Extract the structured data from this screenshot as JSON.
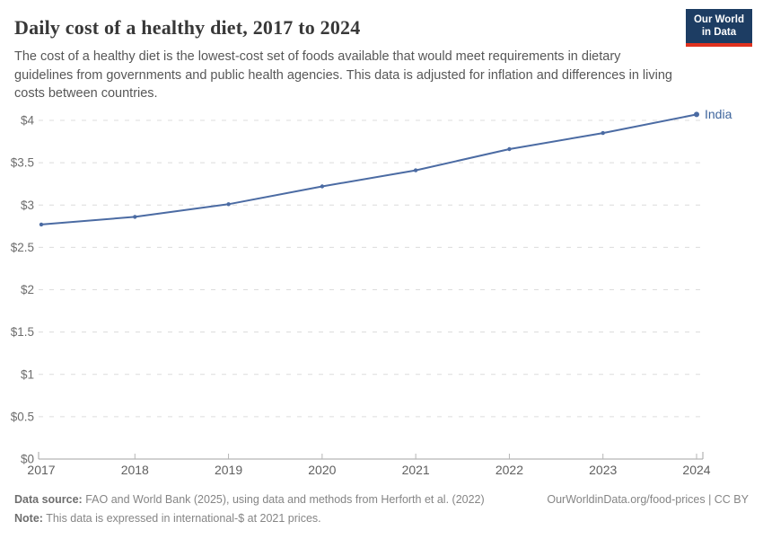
{
  "header": {
    "title": "Daily cost of a healthy diet, 2017 to 2024",
    "subtitle": "The cost of a healthy diet is the lowest-cost set of foods available that would meet requirements in dietary guidelines from governments and public health agencies. This data is adjusted for inflation and differences in living costs between countries."
  },
  "logo": {
    "line1": "Our World",
    "line2": "in Data",
    "bg_color": "#1d3d63",
    "accent_color": "#e0321f"
  },
  "chart_data": {
    "type": "line",
    "title": "Daily cost of a healthy diet, 2017 to 2024",
    "x": [
      2017,
      2018,
      2019,
      2020,
      2021,
      2022,
      2023,
      2024
    ],
    "series": [
      {
        "name": "India",
        "color": "#4b6ba3",
        "label_color": "#3d649c",
        "values": [
          2.77,
          2.86,
          3.01,
          3.22,
          3.41,
          3.66,
          3.85,
          4.07
        ]
      }
    ],
    "ylim": [
      0,
      4
    ],
    "yticks": [
      {
        "v": 0,
        "label": "$0"
      },
      {
        "v": 0.5,
        "label": "$0.5"
      },
      {
        "v": 1,
        "label": "$1"
      },
      {
        "v": 1.5,
        "label": "$1.5"
      },
      {
        "v": 2,
        "label": "$2"
      },
      {
        "v": 2.5,
        "label": "$2.5"
      },
      {
        "v": 3,
        "label": "$3"
      },
      {
        "v": 3.5,
        "label": "$3.5"
      },
      {
        "v": 4,
        "label": "$4"
      }
    ],
    "grid": "horizontal-dashed",
    "legend_position": "end-of-line"
  },
  "footer": {
    "datasource_label": "Data source:",
    "datasource_text": "FAO and World Bank (2025), using data and methods from Herforth et al. (2022)",
    "note_label": "Note:",
    "note_text": "This data is expressed in international-$ at 2021 prices.",
    "link": "OurWorldinData.org/food-prices | CC BY"
  }
}
